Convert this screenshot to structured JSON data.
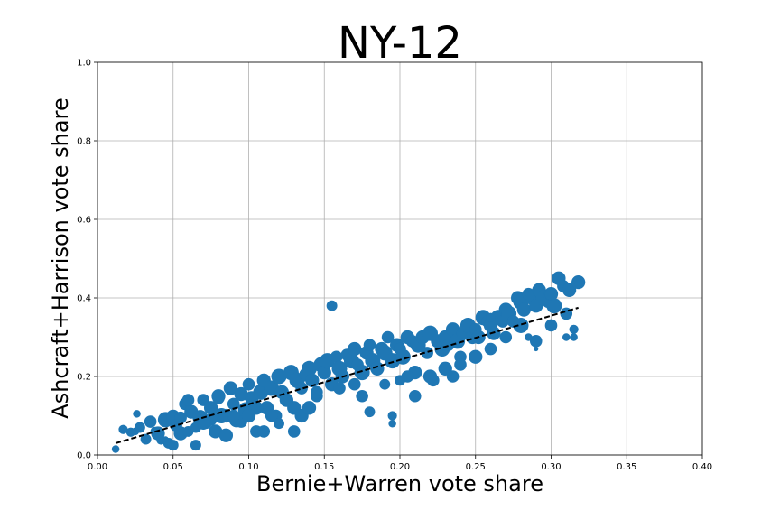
{
  "chart_data": {
    "type": "scatter",
    "title": "NY-12",
    "xlabel": "Bernie+Warren vote share",
    "ylabel": "Ashcraft+Harrison vote share",
    "xlim": [
      0.0,
      0.4
    ],
    "ylim": [
      0.0,
      1.0
    ],
    "x_ticks": [
      "0.00",
      "0.05",
      "0.10",
      "0.15",
      "0.20",
      "0.25",
      "0.30",
      "0.35",
      "0.40"
    ],
    "y_ticks": [
      "0.0",
      "0.2",
      "0.4",
      "0.6",
      "0.8",
      "1.0"
    ],
    "grid": true,
    "point_color": "#1f77b4",
    "trend_color": "#000000",
    "trend_style": "dashed",
    "trendline": {
      "x": [
        0.012,
        0.318
      ],
      "y": [
        0.03,
        0.375
      ]
    },
    "points": {
      "x": [
        0.012,
        0.017,
        0.022,
        0.026,
        0.028,
        0.032,
        0.035,
        0.038,
        0.04,
        0.042,
        0.045,
        0.047,
        0.05,
        0.052,
        0.055,
        0.058,
        0.06,
        0.062,
        0.065,
        0.068,
        0.07,
        0.072,
        0.075,
        0.078,
        0.08,
        0.082,
        0.085,
        0.088,
        0.09,
        0.092,
        0.095,
        0.098,
        0.1,
        0.102,
        0.105,
        0.108,
        0.11,
        0.112,
        0.115,
        0.118,
        0.12,
        0.122,
        0.125,
        0.128,
        0.13,
        0.132,
        0.135,
        0.138,
        0.14,
        0.142,
        0.145,
        0.148,
        0.15,
        0.152,
        0.155,
        0.158,
        0.16,
        0.162,
        0.165,
        0.168,
        0.17,
        0.172,
        0.175,
        0.178,
        0.18,
        0.182,
        0.185,
        0.188,
        0.19,
        0.192,
        0.195,
        0.198,
        0.2,
        0.202,
        0.205,
        0.208,
        0.21,
        0.212,
        0.215,
        0.218,
        0.22,
        0.222,
        0.225,
        0.228,
        0.23,
        0.232,
        0.235,
        0.238,
        0.24,
        0.242,
        0.245,
        0.248,
        0.25,
        0.252,
        0.255,
        0.258,
        0.26,
        0.262,
        0.265,
        0.268,
        0.27,
        0.272,
        0.275,
        0.278,
        0.28,
        0.282,
        0.285,
        0.288,
        0.29,
        0.292,
        0.295,
        0.298,
        0.3,
        0.302,
        0.305,
        0.308,
        0.31,
        0.312,
        0.315,
        0.318,
        0.055,
        0.065,
        0.075,
        0.085,
        0.095,
        0.105,
        0.115,
        0.125,
        0.135,
        0.145,
        0.16,
        0.175,
        0.19,
        0.205,
        0.22,
        0.235,
        0.25,
        0.27,
        0.29,
        0.06,
        0.08,
        0.1,
        0.12,
        0.14,
        0.17,
        0.2,
        0.23,
        0.26,
        0.28,
        0.3,
        0.07,
        0.09,
        0.11,
        0.13,
        0.18,
        0.21,
        0.24,
        0.155,
        0.29,
        0.315,
        0.195,
        0.31,
        0.045,
        0.285,
        0.3,
        0.26,
        0.195,
        0.05,
        0.025
      ],
      "y": [
        0.015,
        0.065,
        0.058,
        0.105,
        0.07,
        0.04,
        0.085,
        0.06,
        0.055,
        0.038,
        0.09,
        0.03,
        0.098,
        0.075,
        0.055,
        0.13,
        0.06,
        0.11,
        0.025,
        0.095,
        0.14,
        0.08,
        0.12,
        0.06,
        0.145,
        0.1,
        0.05,
        0.17,
        0.13,
        0.09,
        0.155,
        0.115,
        0.18,
        0.145,
        0.06,
        0.16,
        0.19,
        0.12,
        0.17,
        0.1,
        0.2,
        0.16,
        0.14,
        0.21,
        0.12,
        0.19,
        0.17,
        0.205,
        0.22,
        0.19,
        0.15,
        0.23,
        0.21,
        0.24,
        0.18,
        0.25,
        0.22,
        0.2,
        0.255,
        0.24,
        0.27,
        0.23,
        0.21,
        0.26,
        0.28,
        0.24,
        0.22,
        0.27,
        0.26,
        0.3,
        0.24,
        0.28,
        0.27,
        0.25,
        0.3,
        0.29,
        0.21,
        0.28,
        0.3,
        0.26,
        0.31,
        0.19,
        0.29,
        0.27,
        0.3,
        0.28,
        0.32,
        0.29,
        0.25,
        0.31,
        0.33,
        0.3,
        0.32,
        0.3,
        0.35,
        0.34,
        0.33,
        0.31,
        0.35,
        0.34,
        0.37,
        0.36,
        0.34,
        0.4,
        0.39,
        0.37,
        0.41,
        0.4,
        0.38,
        0.42,
        0.4,
        0.39,
        0.41,
        0.38,
        0.45,
        0.43,
        0.36,
        0.42,
        0.3,
        0.44,
        0.095,
        0.07,
        0.09,
        0.1,
        0.085,
        0.12,
        0.1,
        0.14,
        0.1,
        0.16,
        0.17,
        0.15,
        0.18,
        0.2,
        0.2,
        0.2,
        0.25,
        0.3,
        0.29,
        0.14,
        0.15,
        0.1,
        0.08,
        0.12,
        0.18,
        0.19,
        0.22,
        0.27,
        0.33,
        0.33,
        0.08,
        0.1,
        0.06,
        0.06,
        0.11,
        0.15,
        0.23,
        0.38,
        0.27,
        0.32,
        0.08,
        0.3,
        0.04,
        0.3,
        0.41,
        0.35,
        0.1,
        0.025,
        0.06
      ],
      "sizes": [
        5,
        6,
        6,
        5,
        7,
        7,
        8,
        6,
        9,
        6,
        10,
        7,
        9,
        8,
        9,
        8,
        7,
        9,
        7,
        10,
        8,
        7,
        9,
        9,
        8,
        10,
        9,
        9,
        8,
        10,
        9,
        10,
        8,
        9,
        8,
        10,
        9,
        9,
        10,
        8,
        10,
        9,
        8,
        10,
        9,
        10,
        8,
        9,
        10,
        9,
        8,
        10,
        9,
        10,
        9,
        8,
        10,
        9,
        8,
        10,
        9,
        8,
        10,
        9,
        8,
        10,
        9,
        9,
        10,
        8,
        10,
        9,
        8,
        10,
        9,
        8,
        9,
        10,
        9,
        8,
        10,
        8,
        9,
        10,
        9,
        8,
        9,
        10,
        8,
        9,
        10,
        9,
        8,
        9,
        10,
        8,
        9,
        9,
        10,
        8,
        9,
        10,
        8,
        9,
        10,
        9,
        8,
        10,
        9,
        9,
        10,
        8,
        9,
        10,
        9,
        8,
        8,
        9,
        5,
        9,
        8,
        7,
        8,
        9,
        8,
        9,
        8,
        9,
        9,
        8,
        8,
        8,
        7,
        8,
        9,
        8,
        9,
        8,
        8,
        8,
        9,
        9,
        7,
        9,
        8,
        7,
        9,
        8,
        10,
        8,
        8,
        8,
        8,
        8,
        7,
        8,
        8,
        7,
        3,
        6,
        5,
        5,
        4,
        5,
        8,
        6,
        6,
        7,
        5
      ]
    }
  }
}
